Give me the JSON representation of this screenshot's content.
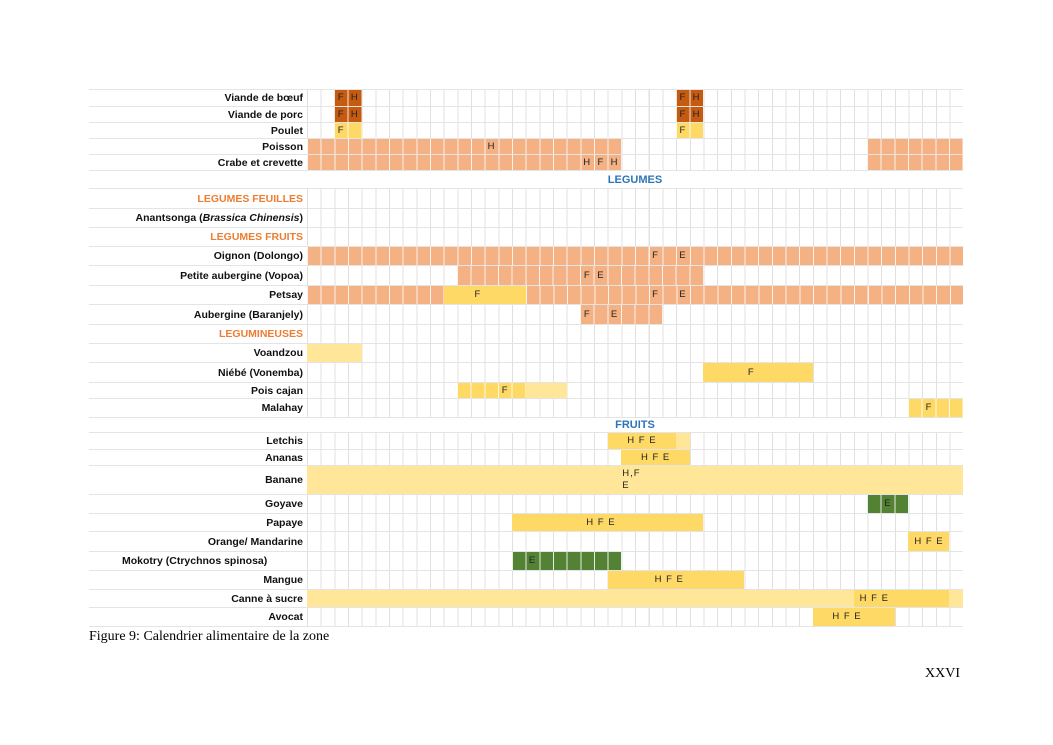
{
  "colors": {
    "brown": "#c55a11",
    "salmon": "#f4b183",
    "yellow": "#ffd966",
    "light": "#ffe699",
    "green": "#548235"
  },
  "chart_data": {
    "type": "table",
    "columns": 48,
    "rows": [
      {
        "label": "Viande de bœuf",
        "segments": [
          {
            "from": 2,
            "to": 3,
            "color": "brown"
          },
          {
            "from": 27,
            "to": 28,
            "color": "brown"
          }
        ],
        "marks": [
          {
            "col": 2,
            "text": "F"
          },
          {
            "col": 3,
            "text": "H"
          },
          {
            "col": 27,
            "text": "F"
          },
          {
            "col": 28,
            "text": "H"
          }
        ]
      },
      {
        "label": "Viande de porc",
        "segments": [
          {
            "from": 2,
            "to": 3,
            "color": "brown"
          },
          {
            "from": 27,
            "to": 28,
            "color": "brown"
          }
        ],
        "marks": [
          {
            "col": 2,
            "text": "F"
          },
          {
            "col": 3,
            "text": "H"
          },
          {
            "col": 27,
            "text": "F"
          },
          {
            "col": 28,
            "text": "H"
          }
        ]
      },
      {
        "label": "Poulet",
        "segments": [
          {
            "from": 2,
            "to": 3,
            "color": "yellow"
          },
          {
            "from": 27,
            "to": 28,
            "color": "yellow"
          }
        ],
        "marks": [
          {
            "col": 2,
            "text": "F"
          },
          {
            "col": 27,
            "text": "F"
          }
        ]
      },
      {
        "label": "Poisson",
        "segments": [
          {
            "from": 0,
            "to": 22,
            "color": "salmon"
          },
          {
            "from": 41,
            "to": 47,
            "color": "salmon"
          }
        ],
        "marks": [
          {
            "col": 13,
            "text": "H"
          }
        ]
      },
      {
        "label": "Crabe et crevette",
        "segments": [
          {
            "from": 0,
            "to": 22,
            "color": "salmon"
          },
          {
            "from": 41,
            "to": 47,
            "color": "salmon"
          }
        ],
        "marks": [
          {
            "col": 20,
            "text": "H"
          },
          {
            "col": 21,
            "text": "F"
          },
          {
            "col": 22,
            "text": "H"
          }
        ]
      },
      {
        "section": "LEGUMES"
      },
      {
        "label": "LEGUMES FEUILLES",
        "category": true
      },
      {
        "label": "Anantsonga (",
        "label_italic": "Brassica Chinensis",
        "label_end": ")"
      },
      {
        "label": "LEGUMES FRUITS",
        "category": true
      },
      {
        "label": "Oignon (Dolongo)",
        "segments": [
          {
            "from": 0,
            "to": 47,
            "color": "salmon"
          }
        ],
        "marks": [
          {
            "col": 25,
            "text": "F"
          },
          {
            "col": 27,
            "text": "E"
          }
        ]
      },
      {
        "label": "Petite aubergine (Vopoa)",
        "segments": [
          {
            "from": 11,
            "to": 28,
            "color": "salmon"
          }
        ],
        "marks": [
          {
            "col": 20,
            "text": "F"
          },
          {
            "col": 21,
            "text": "E"
          }
        ]
      },
      {
        "label": "Petsay",
        "segments": [
          {
            "from": 0,
            "to": 9,
            "color": "salmon"
          },
          {
            "from": 10,
            "to": 15,
            "color": "yellow",
            "merged": true
          },
          {
            "from": 16,
            "to": 47,
            "color": "salmon"
          }
        ],
        "marks": [
          {
            "col": 12,
            "text": "F"
          },
          {
            "col": 25,
            "text": "F"
          },
          {
            "col": 27,
            "text": "E"
          }
        ]
      },
      {
        "label": "Aubergine (Baranjely)",
        "segments": [
          {
            "from": 20,
            "to": 25,
            "color": "salmon"
          }
        ],
        "marks": [
          {
            "col": 20,
            "text": "F"
          },
          {
            "col": 22,
            "text": "E"
          }
        ]
      },
      {
        "label": "LEGUMINEUSES",
        "category": true
      },
      {
        "label": "Voandzou",
        "segments": [
          {
            "from": 0,
            "to": 3,
            "color": "light",
            "merged": true
          }
        ],
        "marks": []
      },
      {
        "label": "Niébé (Vonemba)",
        "segments": [
          {
            "from": 29,
            "to": 36,
            "color": "yellow",
            "merged": true
          }
        ],
        "marks": [
          {
            "col": 32,
            "text": "F"
          }
        ]
      },
      {
        "label": "Pois cajan",
        "segments": [
          {
            "from": 11,
            "to": 15,
            "color": "yellow"
          },
          {
            "from": 16,
            "to": 18,
            "color": "light",
            "merged": true
          }
        ],
        "marks": [
          {
            "col": 14,
            "text": "F"
          }
        ]
      },
      {
        "label": "Malahay",
        "segments": [
          {
            "from": 44,
            "to": 47,
            "color": "yellow"
          }
        ],
        "marks": [
          {
            "col": 45,
            "text": "F"
          }
        ]
      },
      {
        "section": "FRUITS"
      },
      {
        "label": "Letchis",
        "segments": [
          {
            "from": 22,
            "to": 26,
            "color": "yellow",
            "merged": true
          },
          {
            "from": 27,
            "to": 27,
            "color": "light",
            "merged": true
          }
        ],
        "marks": [
          {
            "col": 24,
            "text": "H F E"
          }
        ]
      },
      {
        "label": "Ananas",
        "segments": [
          {
            "from": 23,
            "to": 27,
            "color": "yellow",
            "merged": true
          }
        ],
        "marks": [
          {
            "col": 25,
            "text": "H F E"
          }
        ]
      },
      {
        "label": "Banane",
        "tall": true,
        "segments": [
          {
            "from": 0,
            "to": 47,
            "color": "light",
            "merged": true
          }
        ],
        "marks": [
          {
            "col": 23,
            "text": "H,F\nE",
            "topleft": true
          }
        ]
      },
      {
        "label": "Goyave",
        "segments": [
          {
            "from": 41,
            "to": 43,
            "color": "green"
          }
        ],
        "marks": [
          {
            "col": 42,
            "text": "E"
          }
        ]
      },
      {
        "label": "Papaye",
        "segments": [
          {
            "from": 15,
            "to": 28,
            "color": "yellow",
            "merged": true
          }
        ],
        "marks": [
          {
            "col": 21,
            "text": "H F E"
          }
        ]
      },
      {
        "label": "Orange/ Mandarine",
        "segments": [
          {
            "from": 44,
            "to": 46,
            "color": "yellow",
            "merged": true
          }
        ],
        "marks": [
          {
            "col": 45,
            "text": "H F E"
          }
        ]
      },
      {
        "label": "Mokotry (Ctrychnos spinosa)",
        "left": true,
        "segments": [
          {
            "from": 15,
            "to": 22,
            "color": "green"
          }
        ],
        "marks": [
          {
            "col": 16,
            "text": "E"
          }
        ]
      },
      {
        "label": "Mangue",
        "segments": [
          {
            "from": 22,
            "to": 31,
            "color": "yellow",
            "merged": true
          }
        ],
        "marks": [
          {
            "col": 26,
            "text": "H F E"
          }
        ]
      },
      {
        "label": "Canne à sucre",
        "segments": [
          {
            "from": 0,
            "to": 39,
            "color": "light",
            "merged": true
          },
          {
            "from": 40,
            "to": 46,
            "color": "yellow",
            "merged": true
          },
          {
            "from": 47,
            "to": 47,
            "color": "light",
            "merged": true
          }
        ],
        "marks": [
          {
            "col": 41,
            "text": "H F E"
          }
        ]
      },
      {
        "label": "Avocat",
        "segments": [
          {
            "from": 37,
            "to": 42,
            "color": "yellow",
            "merged": true
          }
        ],
        "marks": [
          {
            "col": 39,
            "text": "H F E"
          }
        ]
      }
    ]
  },
  "caption": "Figure 9: Calendrier alimentaire de la zone",
  "page_number": "XXVI"
}
